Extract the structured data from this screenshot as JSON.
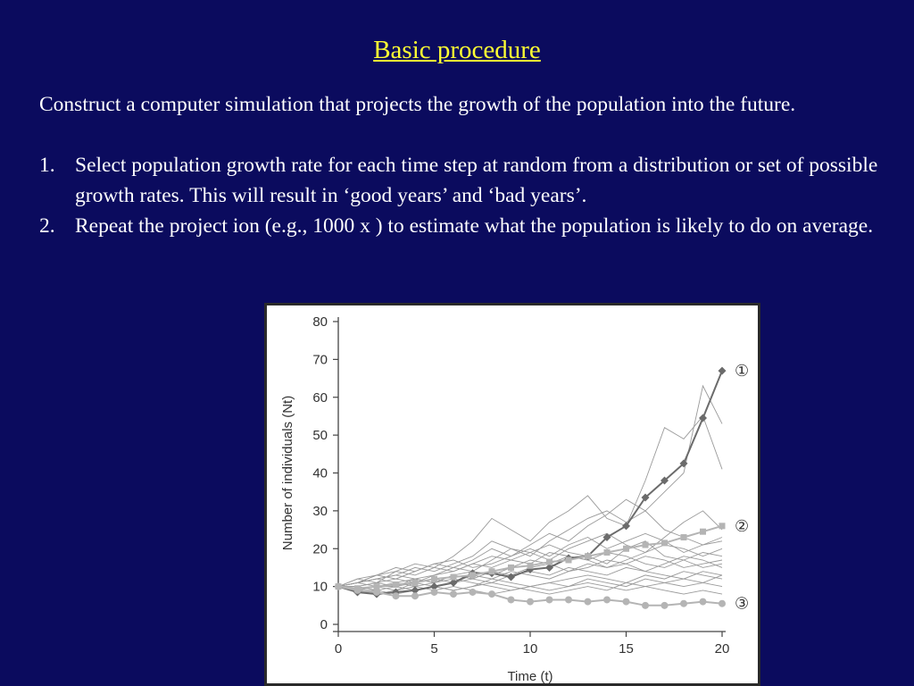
{
  "slide": {
    "title": "Basic procedure",
    "intro": "Construct a computer simulation that projects the growth of the population into the future.",
    "steps": [
      {
        "num": "1.",
        "text": "Select population growth rate for each time step at random from a distribution or set of possible growth rates.  This will result in ‘good years’ and ‘bad years’."
      },
      {
        "num": "2.",
        "text": "Repeat the project ion (e.g., 1000 x ) to estimate what the population is likely to do on average."
      }
    ]
  },
  "chart_data": {
    "type": "line",
    "xlabel": "Time (t)",
    "ylabel": "Number of individuals (Nt)",
    "xlim": [
      0,
      20
    ],
    "ylim": [
      0,
      80
    ],
    "xticks": [
      0,
      5,
      10,
      15,
      20
    ],
    "yticks": [
      0,
      10,
      20,
      30,
      40,
      50,
      60,
      70,
      80
    ],
    "x": [
      0,
      1,
      2,
      3,
      4,
      5,
      6,
      7,
      8,
      9,
      10,
      11,
      12,
      13,
      14,
      15,
      16,
      17,
      18,
      19,
      20
    ],
    "highlighted": [
      {
        "label": "①",
        "color": "#6b6b6b",
        "marker": "diamond",
        "values": [
          10,
          8.5,
          8,
          8.5,
          9,
          10,
          11,
          13.5,
          13.5,
          12.5,
          14.5,
          15,
          17.5,
          18,
          23,
          26,
          33.5,
          38,
          42.5,
          54.5,
          67
        ]
      },
      {
        "label": "②",
        "color": "#b4b4b4",
        "marker": "square",
        "values": [
          10,
          9.5,
          10,
          10.5,
          11,
          12,
          12.5,
          13,
          14,
          15,
          15.5,
          16.5,
          17,
          18,
          19,
          20,
          21,
          21.5,
          23,
          24.5,
          26
        ]
      },
      {
        "label": "③",
        "color": "#b4b4b4",
        "marker": "circle",
        "values": [
          10,
          9,
          8.5,
          7.5,
          7.5,
          8.5,
          8,
          8.5,
          8,
          6.5,
          6,
          6.5,
          6.5,
          6,
          6.5,
          6,
          5,
          5,
          5.5,
          6,
          5.5
        ]
      }
    ],
    "background_series": [
      [
        10,
        11,
        12,
        13,
        15,
        14,
        16,
        18,
        22,
        20,
        18,
        22,
        25,
        28,
        30,
        27,
        30,
        35,
        40,
        63,
        53
      ],
      [
        10,
        12,
        11,
        14,
        16,
        15,
        18,
        22,
        28,
        25,
        22,
        27,
        30,
        34,
        28,
        26,
        38,
        52,
        49,
        55,
        41
      ],
      [
        10,
        9,
        10,
        11,
        12,
        13,
        15,
        17,
        20,
        18,
        21,
        24,
        22,
        26,
        29,
        33,
        30,
        25,
        23,
        21,
        22
      ],
      [
        10,
        11,
        13,
        12,
        14,
        16,
        15,
        14,
        17,
        20,
        19,
        17,
        20,
        22,
        24,
        21,
        19,
        23,
        27,
        30,
        25
      ],
      [
        10,
        10,
        11,
        12,
        11,
        13,
        14,
        16,
        15,
        17,
        19,
        21,
        19,
        18,
        16,
        20,
        22,
        18,
        17,
        15,
        16
      ],
      [
        10,
        9,
        10,
        10,
        12,
        11,
        13,
        12,
        14,
        13,
        15,
        16,
        18,
        17,
        19,
        18,
        16,
        15,
        17,
        19,
        18
      ],
      [
        10,
        11,
        10,
        9,
        11,
        12,
        11,
        13,
        12,
        14,
        13,
        12,
        14,
        16,
        15,
        17,
        19,
        21,
        20,
        18,
        20
      ],
      [
        10,
        10,
        9,
        10,
        9,
        10,
        11,
        12,
        11,
        13,
        14,
        13,
        15,
        14,
        13,
        15,
        14,
        16,
        18,
        17,
        15
      ],
      [
        10,
        9,
        9,
        8,
        9,
        10,
        9,
        10,
        12,
        11,
        10,
        11,
        12,
        13,
        12,
        11,
        13,
        12,
        14,
        13,
        12
      ],
      [
        10,
        11,
        12,
        11,
        10,
        11,
        12,
        11,
        10,
        9,
        10,
        11,
        10,
        12,
        11,
        10,
        12,
        11,
        10,
        11,
        10
      ],
      [
        10,
        10,
        11,
        10,
        11,
        10,
        9,
        10,
        11,
        10,
        9,
        8,
        9,
        10,
        9,
        11,
        10,
        9,
        8,
        9,
        8
      ],
      [
        10,
        12,
        13,
        14,
        13,
        15,
        14,
        16,
        18,
        17,
        16,
        19,
        18,
        17,
        15,
        16,
        14,
        13,
        12,
        14,
        13
      ],
      [
        10,
        11,
        13,
        15,
        14,
        16,
        17,
        15,
        16,
        18,
        20,
        18,
        21,
        23,
        20,
        22,
        24,
        22,
        19,
        21,
        23
      ],
      [
        10,
        9,
        8,
        9,
        10,
        9,
        10,
        9,
        8,
        9,
        10,
        9,
        10,
        11,
        10,
        9,
        10,
        11,
        12,
        11,
        13
      ],
      [
        10,
        11,
        12,
        13,
        12,
        11,
        13,
        14,
        13,
        15,
        17,
        16,
        14,
        15,
        17,
        16,
        18,
        17,
        15,
        16,
        17
      ]
    ]
  }
}
